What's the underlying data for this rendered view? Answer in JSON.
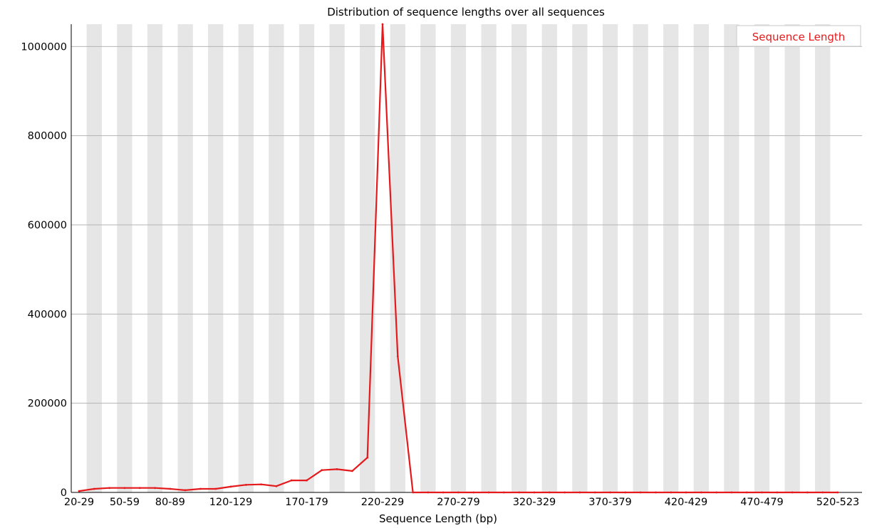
{
  "chart_data": {
    "type": "line",
    "title": "Distribution of sequence lengths over all sequences",
    "xlabel": "Sequence Length (bp)",
    "ylabel": "",
    "ylim": [
      0,
      1050000
    ],
    "yticks": [
      0,
      200000,
      400000,
      600000,
      800000,
      1000000
    ],
    "ytick_labels": [
      "0",
      "200000",
      "400000",
      "600000",
      "800000",
      "1000000"
    ],
    "xtick_labels": [
      {
        "index": 0,
        "label": "20-29"
      },
      {
        "index": 3,
        "label": "50-59"
      },
      {
        "index": 6,
        "label": "80-89"
      },
      {
        "index": 10,
        "label": "120-129"
      },
      {
        "index": 15,
        "label": "170-179"
      },
      {
        "index": 20,
        "label": "220-229"
      },
      {
        "index": 25,
        "label": "270-279"
      },
      {
        "index": 30,
        "label": "320-329"
      },
      {
        "index": 35,
        "label": "370-379"
      },
      {
        "index": 40,
        "label": "420-429"
      },
      {
        "index": 45,
        "label": "470-479"
      },
      {
        "index": 50,
        "label": "520-523"
      }
    ],
    "category_count": 51,
    "series": [
      {
        "name": "Sequence Length",
        "color": "#e41a1c",
        "values": [
          3000,
          8000,
          10000,
          10000,
          10000,
          10000,
          8000,
          5000,
          8000,
          8000,
          13000,
          17000,
          18000,
          14000,
          27000,
          27000,
          50000,
          52000,
          48000,
          78000,
          1050000,
          305000,
          0,
          0,
          0,
          0,
          0,
          0,
          0,
          0,
          0,
          0,
          0,
          0,
          0,
          0,
          0,
          0,
          0,
          0,
          0,
          0,
          0,
          0,
          0,
          0,
          0,
          0,
          0,
          0,
          0
        ]
      }
    ],
    "grid": true,
    "alternating_bands": true,
    "band_color": "#e6e6e6",
    "legend_position": "top-right"
  }
}
